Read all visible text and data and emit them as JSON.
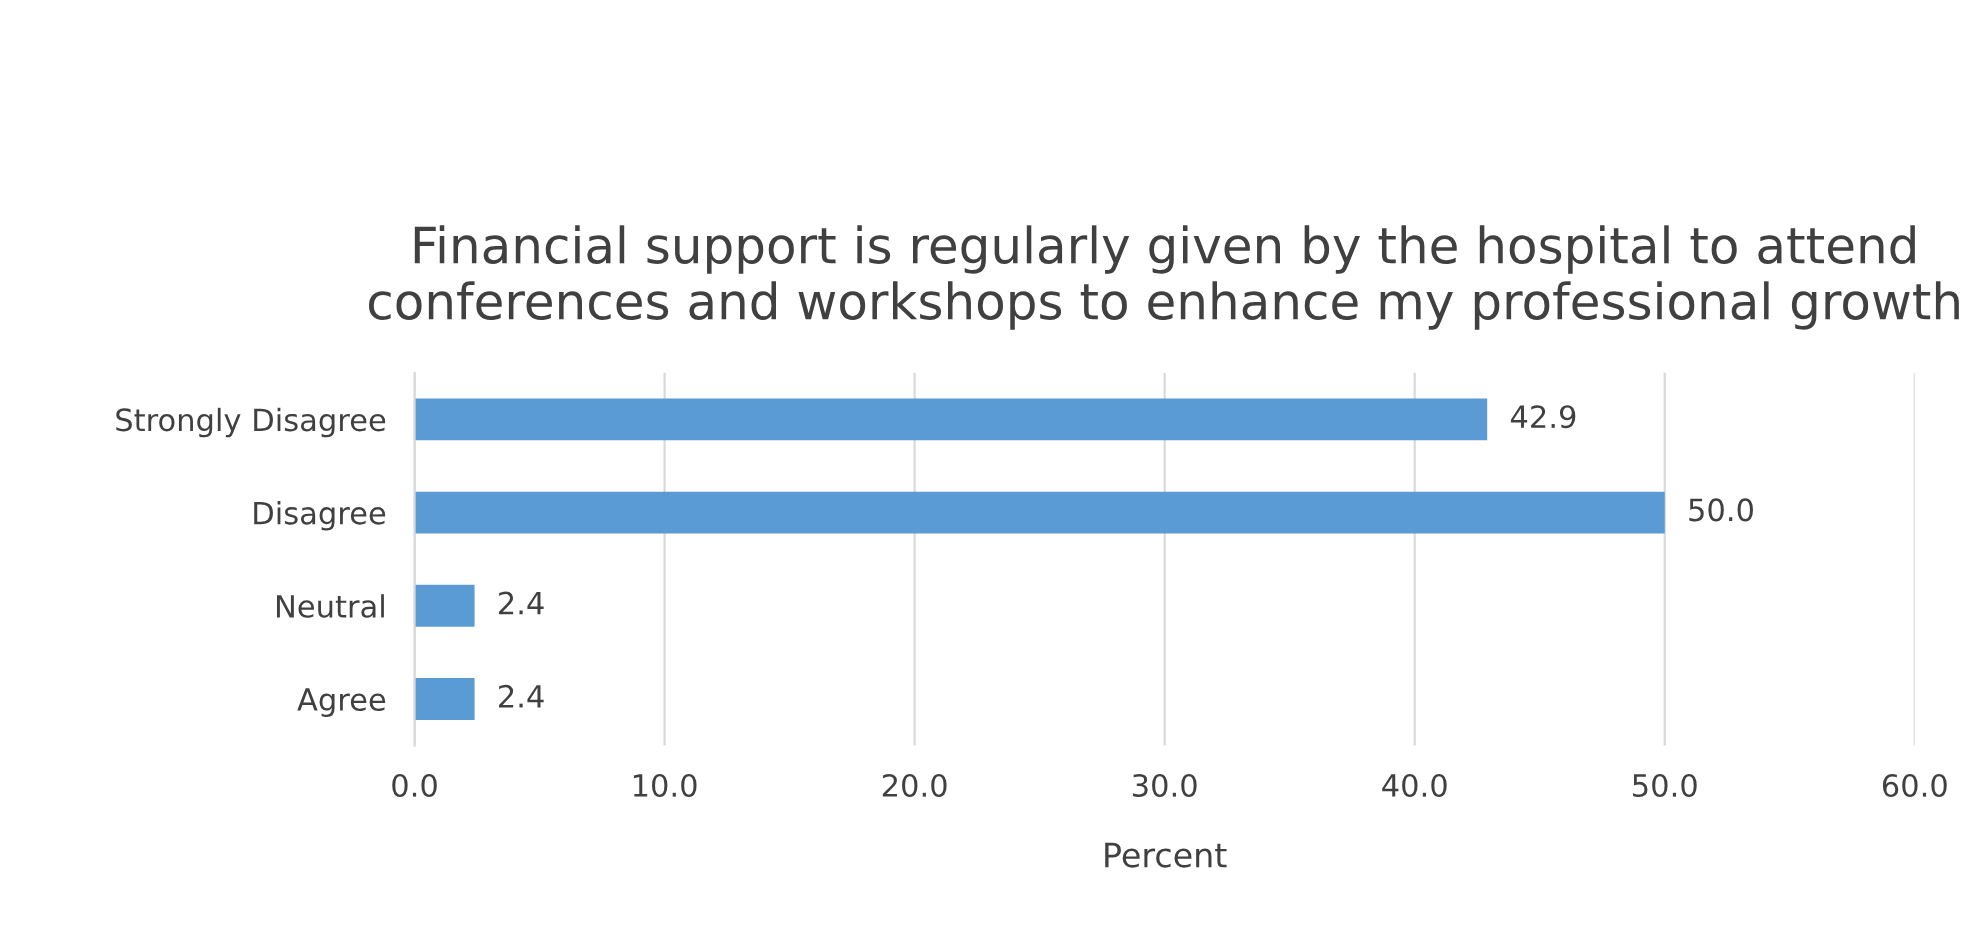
{
  "chart_data": {
    "type": "bar",
    "orientation": "horizontal",
    "title": "Financial support is regularly given by the hospital to attend conferences and workshops to enhance my professional growth",
    "xlabel": "Percent",
    "categories": [
      "Strongly Disagree",
      "Disagree",
      "Neutral",
      "Agree"
    ],
    "values": [
      42.9,
      50.0,
      2.4,
      2.4
    ],
    "value_labels": [
      "42.9",
      "50.0",
      "2.4",
      "2.4"
    ],
    "color": "#5b9bd5",
    "xlim": [
      0,
      60
    ],
    "xticks": [
      {
        "value": 0,
        "label": "0.0"
      },
      {
        "value": 10,
        "label": "10.0"
      },
      {
        "value": 20,
        "label": "20.0"
      },
      {
        "value": 30,
        "label": "30.0"
      },
      {
        "value": 40,
        "label": "40.0"
      },
      {
        "value": 50,
        "label": "50.0"
      },
      {
        "value": 60,
        "label": "60.0"
      }
    ],
    "grid": "x",
    "legend": false
  }
}
